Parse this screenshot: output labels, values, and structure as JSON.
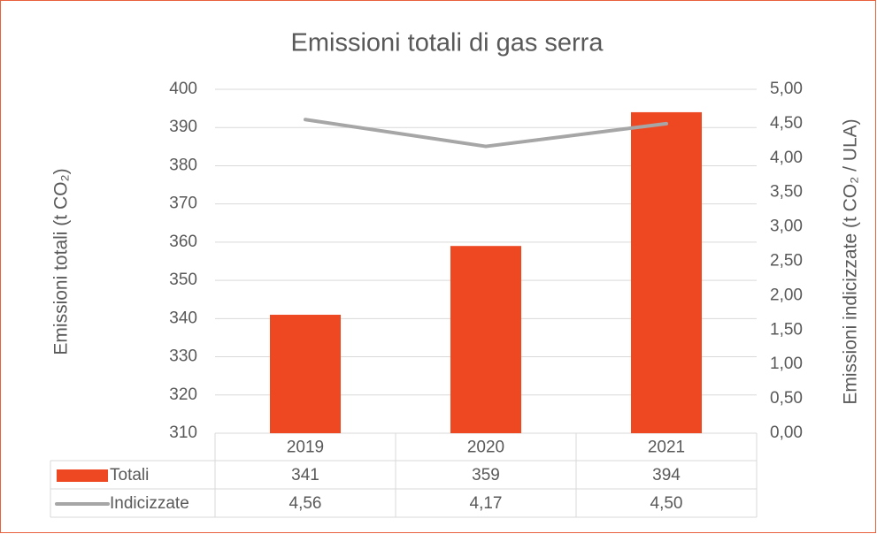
{
  "chart_data": {
    "type": "bar_line",
    "title": "Emissioni totali di gas serra",
    "y_label": "Emissioni totali (t CO₂)",
    "y2_label": "Emissioni indicizzate (t CO₂ / ULA)",
    "categories": [
      "2019",
      "2020",
      "2021"
    ],
    "series": [
      {
        "name": "Totali",
        "type": "bar",
        "color": "#ee4823",
        "values": [
          341,
          359,
          394
        ]
      },
      {
        "name": "Indicizzate",
        "type": "line",
        "color": "#a6a6a6",
        "axis": "y2",
        "values": [
          4.56,
          4.17,
          4.5
        ],
        "value_labels": [
          "4,56",
          "4,17",
          "4,50"
        ]
      }
    ],
    "ylim": [
      310,
      400
    ],
    "yticks": [
      310,
      320,
      330,
      340,
      350,
      360,
      370,
      380,
      390,
      400
    ],
    "y2lim": [
      0,
      5
    ],
    "y2ticks": [
      {
        "value": 0,
        "label": "0,00"
      },
      {
        "value": 0.5,
        "label": "0,50"
      },
      {
        "value": 1,
        "label": "1,00"
      },
      {
        "value": 1.5,
        "label": "1,50"
      },
      {
        "value": 2,
        "label": "2,00"
      },
      {
        "value": 2.5,
        "label": "2,50"
      },
      {
        "value": 3,
        "label": "3,00"
      },
      {
        "value": 3.5,
        "label": "3,50"
      },
      {
        "value": 4,
        "label": "4,00"
      },
      {
        "value": 4.5,
        "label": "4,50"
      },
      {
        "value": 5,
        "label": "5,00"
      }
    ],
    "grid": true,
    "data_table": true
  }
}
